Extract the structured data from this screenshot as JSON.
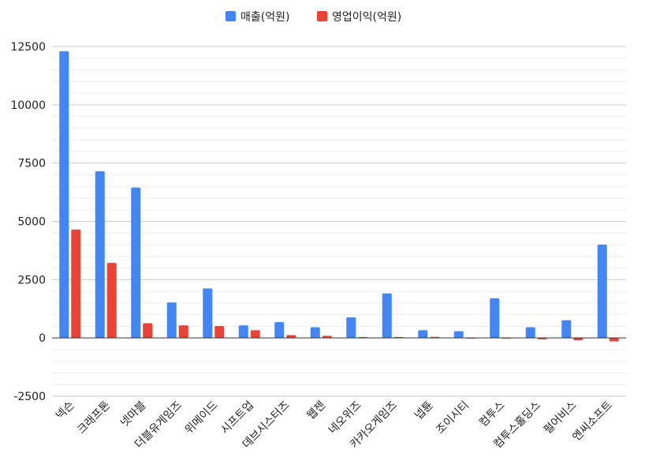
{
  "chart_data": {
    "type": "bar",
    "categories": [
      "넥슨",
      "크래프톤",
      "넷마블",
      "더블유게임즈",
      "위메이드",
      "시프트업",
      "데브시스터즈",
      "웹젠",
      "네오위즈",
      "카카오게임즈",
      "넵튠",
      "조이시티",
      "컴투스",
      "컴투스홀딩스",
      "펄어비스",
      "엔씨소프트"
    ],
    "series": [
      {
        "name": "매출(억원)",
        "color": "#4285f4",
        "values": [
          12300,
          7150,
          6450,
          1520,
          2120,
          540,
          680,
          460,
          880,
          1910,
          330,
          290,
          1700,
          460,
          760,
          4000
        ]
      },
      {
        "name": "영업이익(억원)",
        "color": "#ea4335",
        "values": [
          4650,
          3220,
          630,
          540,
          510,
          330,
          120,
          90,
          40,
          40,
          50,
          -20,
          -20,
          -60,
          -100,
          -150
        ]
      }
    ],
    "yticks": [
      -2500,
      0,
      2500,
      5000,
      7500,
      10000,
      12500
    ],
    "ylim": [
      -2500,
      12500
    ],
    "legend_position": "top-center",
    "grid": true
  }
}
